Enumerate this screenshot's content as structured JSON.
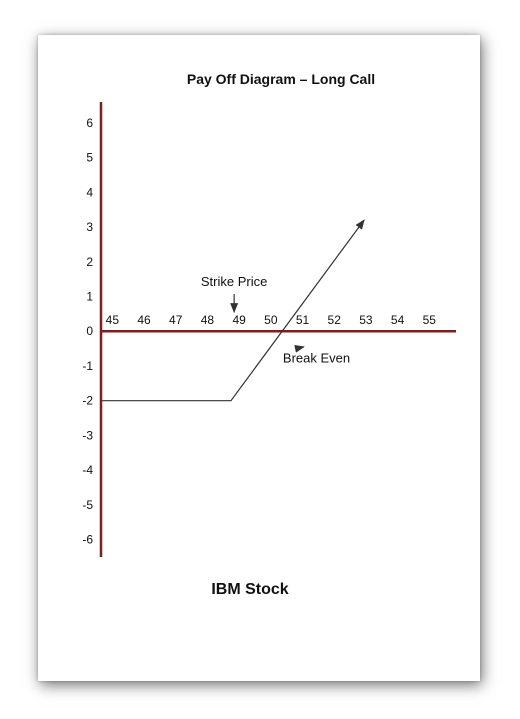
{
  "chart_data": {
    "type": "line",
    "title": "Pay Off Diagram – Long Call",
    "xlabel": "IBM Stock",
    "ylabel": "",
    "x_ticks": [
      45,
      46,
      47,
      48,
      49,
      50,
      51,
      52,
      53,
      54,
      55
    ],
    "y_ticks": [
      6,
      5,
      4,
      3,
      2,
      1,
      0,
      -1,
      -2,
      -3,
      -4,
      -5,
      -6
    ],
    "xlim": [
      44.8,
      56
    ],
    "ylim": [
      -6.5,
      6.6
    ],
    "series": [
      {
        "x": [
          44.8,
          48.9,
          53.1
        ],
        "y": [
          -2,
          -2,
          3.2
        ]
      }
    ],
    "end_arrow": true,
    "annotations": [
      {
        "text": "Strike Price",
        "x": 49,
        "y": 1.3,
        "arrow_to": [
          49,
          0.55
        ]
      },
      {
        "text": "Break Even",
        "x": 51.6,
        "y": -0.9,
        "arrow_to": [
          51.2,
          -0.45
        ]
      }
    ],
    "grid": false,
    "legend": "none",
    "colors": {
      "axis": "#7b1f1f",
      "line": "#333333",
      "text": "#111111"
    }
  }
}
